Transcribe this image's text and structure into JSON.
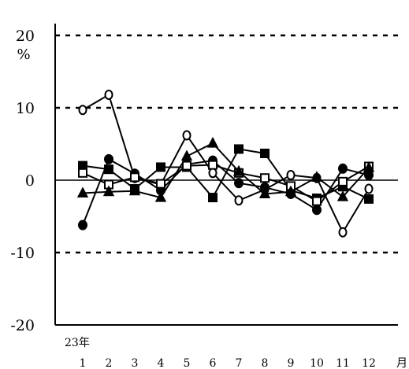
{
  "chart_data": {
    "type": "line",
    "title": "",
    "xlabel": "月",
    "ylabel": "%",
    "year_label": "23年",
    "categories": [
      "1",
      "2",
      "3",
      "4",
      "5",
      "6",
      "7",
      "8",
      "9",
      "10",
      "11",
      "12"
    ],
    "ylim": [
      -20,
      20
    ],
    "yticks": [
      "20",
      "10",
      "0",
      "-10",
      "-20"
    ],
    "dashed_gridlines": [
      20,
      10,
      -10
    ],
    "series": [
      {
        "marker": "open-circle",
        "values": [
          9.7,
          11.8,
          0.3,
          -0.6,
          6.2,
          1.0,
          -2.8,
          -1.3,
          0.7,
          0.3,
          -7.2,
          -1.2
        ]
      },
      {
        "marker": "filled-circle",
        "values": [
          -6.2,
          2.9,
          0.9,
          -1.4,
          2.2,
          2.7,
          -0.4,
          -1.0,
          -1.9,
          -4.1,
          1.6,
          0.7
        ]
      },
      {
        "marker": "filled-square",
        "values": [
          2.0,
          1.5,
          -1.2,
          1.8,
          1.8,
          -2.4,
          4.3,
          3.7,
          -1.4,
          -2.5,
          -0.9,
          -2.6
        ]
      },
      {
        "marker": "open-square",
        "values": [
          1.0,
          -0.6,
          0.4,
          -0.5,
          2.0,
          2.1,
          1.0,
          0.3,
          -0.8,
          -2.9,
          -0.2,
          1.9
        ]
      },
      {
        "marker": "filled-triangle",
        "values": [
          -1.8,
          -1.6,
          -1.5,
          -2.4,
          3.3,
          5.1,
          1.2,
          -1.9,
          -1.6,
          0.4,
          -2.3,
          1.7
        ]
      }
    ]
  }
}
